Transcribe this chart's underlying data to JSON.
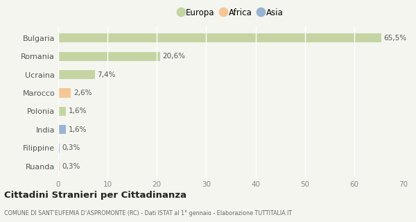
{
  "categories": [
    "Bulgaria",
    "Romania",
    "Ucraina",
    "Marocco",
    "Polonia",
    "India",
    "Filippine",
    "Ruanda"
  ],
  "values": [
    65.5,
    20.6,
    7.4,
    2.6,
    1.6,
    1.6,
    0.3,
    0.3
  ],
  "labels": [
    "65,5%",
    "20,6%",
    "7,4%",
    "2,6%",
    "1,6%",
    "1,6%",
    "0,3%",
    "0,3%"
  ],
  "bar_colors": [
    "#b5c98a",
    "#b5c98a",
    "#b5c98a",
    "#f5b87a",
    "#b5c98a",
    "#7b9ec8",
    "#7b9ec8",
    "#f5b87a"
  ],
  "legend_labels": [
    "Europa",
    "Africa",
    "Asia"
  ],
  "legend_colors": [
    "#b5c98a",
    "#f5b87a",
    "#7b9ec8"
  ],
  "xlim": [
    0,
    70
  ],
  "xticks": [
    0,
    10,
    20,
    30,
    40,
    50,
    60,
    70
  ],
  "title": "Cittadini Stranieri per Cittadinanza",
  "subtitle": "COMUNE DI SANT’EUFEMIA D’ASPROMONTE (RC) - Dati ISTAT al 1° gennaio - Elaborazione TUTTITALIA.IT",
  "background_color": "#f5f5f0",
  "grid_color": "#ffffff",
  "bar_height": 0.5,
  "bar_alpha": 0.75
}
